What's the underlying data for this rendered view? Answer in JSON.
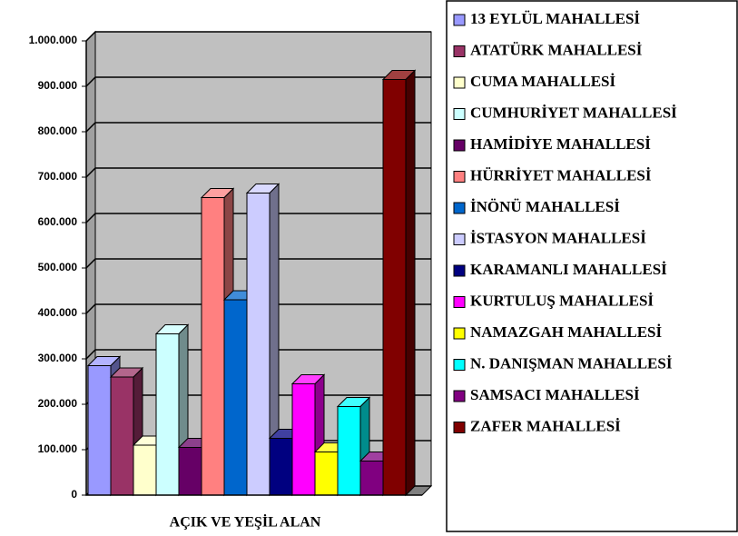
{
  "chart_data": {
    "type": "bar3d",
    "categories": [
      "AÇIK VE YEŞİL ALAN"
    ],
    "series": [
      {
        "name": "13 EYLÜL MAHALLESİ",
        "color": "#9999ff",
        "values": [
          285000
        ]
      },
      {
        "name": "ATATÜRK MAHALLESİ",
        "color": "#993366",
        "values": [
          260000
        ]
      },
      {
        "name": "CUMA MAHALLESİ",
        "color": "#ffffcc",
        "values": [
          110000
        ]
      },
      {
        "name": "CUMHURİYET MAHALLESİ",
        "color": "#ccffff",
        "values": [
          355000
        ]
      },
      {
        "name": "HAMİDİYE MAHALLESİ",
        "color": "#660066",
        "values": [
          105000
        ]
      },
      {
        "name": "HÜRRİYET MAHALLESİ",
        "color": "#ff8080",
        "values": [
          655000
        ]
      },
      {
        "name": "İNÖNÜ MAHALLESİ",
        "color": "#0066cc",
        "values": [
          430000
        ]
      },
      {
        "name": "İSTASYON MAHALLESİ",
        "color": "#ccccff",
        "values": [
          665000
        ]
      },
      {
        "name": "KARAMANLI MAHALLESİ",
        "color": "#000080",
        "values": [
          125000
        ]
      },
      {
        "name": "KURTULUŞ MAHALLESİ",
        "color": "#ff00ff",
        "values": [
          245000
        ]
      },
      {
        "name": "NAMAZGAH MAHALLESİ",
        "color": "#ffff00",
        "values": [
          95000
        ]
      },
      {
        "name": "N. DANIŞMAN MAHALLESİ",
        "color": "#00ffff",
        "values": [
          195000
        ]
      },
      {
        "name": "SAMSACI MAHALLESİ",
        "color": "#800080",
        "values": [
          75000
        ]
      },
      {
        "name": "ZAFER MAHALLESİ",
        "color": "#800000",
        "values": [
          915000
        ]
      }
    ],
    "ylim": [
      0,
      1000000
    ],
    "yticks": [
      0,
      {
        "value": 100000,
        "label": "100.000"
      },
      {
        "value": 200000,
        "label": "200.000"
      },
      {
        "value": 300000,
        "label": "300.000"
      },
      {
        "value": 400000,
        "label": "400.000"
      },
      {
        "value": 500000,
        "label": "500.000"
      },
      {
        "value": 600000,
        "label": "600.000"
      },
      {
        "value": 700000,
        "label": "700.000"
      },
      {
        "value": 800000,
        "label": "800.000"
      },
      {
        "value": 900000,
        "label": "900.000"
      },
      {
        "value": 1000000,
        "label": "1.000.000"
      }
    ],
    "grid": true,
    "legend": "right"
  }
}
